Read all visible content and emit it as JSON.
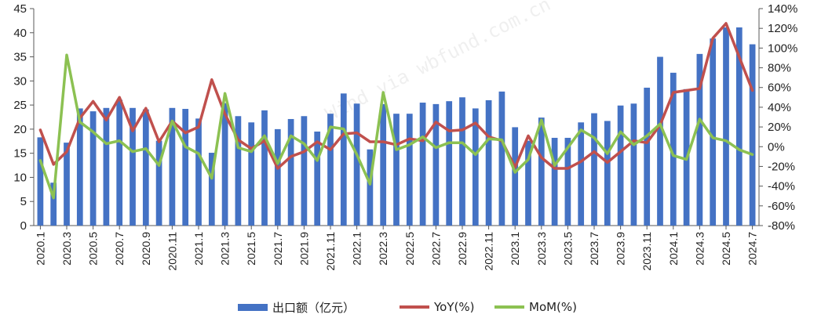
{
  "chart_data": {
    "type": "bar",
    "categories": [
      "2020.1",
      "2020.2",
      "2020.3",
      "2020.4",
      "2020.5",
      "2020.6",
      "2020.7",
      "2020.8",
      "2020.9",
      "2020.10",
      "2020.11",
      "2020.12",
      "2021.1",
      "2021.2",
      "2021.3",
      "2021.4",
      "2021.5",
      "2021.6",
      "2021.7",
      "2021.8",
      "2021.9",
      "2021.10",
      "2021.11",
      "2021.12",
      "2022.1",
      "2022.2",
      "2022.3",
      "2022.4",
      "2022.5",
      "2022.6",
      "2022.7",
      "2022.8",
      "2022.9",
      "2022.10",
      "2022.11",
      "2022.12",
      "2023.1",
      "2023.2",
      "2023.3",
      "2023.4",
      "2023.5",
      "2023.6",
      "2023.7",
      "2023.8",
      "2023.9",
      "2023.10",
      "2023.11",
      "2023.12",
      "2024.1",
      "2024.2",
      "2024.3",
      "2024.4",
      "2024.5",
      "2024.6",
      "2024.7"
    ],
    "x_tick_labels": [
      "2020.1",
      "2020.3",
      "2020.5",
      "2020.7",
      "2020.9",
      "2020.11",
      "2021.1",
      "2021.3",
      "2021.5",
      "2021.7",
      "2021.9",
      "2021.11",
      "2022.1",
      "2022.3",
      "2022.5",
      "2022.7",
      "2022.9",
      "2022.11",
      "2023.1",
      "2023.3",
      "2023.5",
      "2023.7",
      "2023.9",
      "2023.11",
      "2024.1",
      "2024.3",
      "2024.5",
      "2024.7"
    ],
    "series": [
      {
        "name": "出口额（亿元）",
        "type": "bar",
        "axis": "left",
        "color": "#4472C4",
        "values": [
          18.3,
          8.9,
          17.2,
          24.3,
          23.7,
          24.4,
          26.1,
          24.4,
          24.1,
          17.6,
          24.4,
          24.2,
          22.2,
          15.1,
          25.4,
          22.7,
          21.4,
          23.9,
          20.0,
          22.1,
          22.7,
          19.5,
          23.2,
          27.4,
          25.3,
          15.8,
          25.2,
          23.2,
          23.2,
          25.5,
          25.2,
          25.8,
          26.6,
          24.3,
          26.0,
          27.8,
          20.4,
          17.6,
          22.4,
          18.2,
          18.2,
          21.4,
          23.3,
          21.7,
          24.9,
          25.3,
          28.6,
          35.0,
          31.7,
          28.3,
          35.6,
          38.8,
          41.1,
          41.1,
          37.6
        ]
      },
      {
        "name": "YoY(%)",
        "type": "line",
        "axis": "right",
        "color": "#C0504D",
        "values": [
          17,
          -18,
          -5,
          29,
          46,
          27,
          50,
          16,
          39,
          5,
          26,
          14,
          20,
          68,
          33,
          7,
          -2,
          6,
          -22,
          -10,
          -5,
          5,
          -3,
          13,
          14,
          5,
          5,
          2,
          8,
          6,
          25,
          16,
          17,
          24,
          10,
          6,
          -21,
          11,
          -11,
          -22,
          -22,
          -15,
          -5,
          -16,
          -5,
          6,
          4,
          22,
          55,
          57,
          59,
          110,
          125,
          91,
          57
        ]
      },
      {
        "name": "MoM(%)",
        "type": "line",
        "axis": "right",
        "color": "#8CC152",
        "values": [
          -14,
          -52,
          93,
          25,
          15,
          3,
          6,
          -5,
          -2,
          -19,
          26,
          0,
          -7,
          -32,
          54,
          -1,
          -5,
          11,
          -17,
          11,
          3,
          -14,
          20,
          18,
          -8,
          -38,
          55,
          -3,
          2,
          10,
          -1,
          4,
          4,
          -8,
          8,
          7,
          -26,
          -13,
          27,
          -19,
          -1,
          17,
          9,
          -7,
          15,
          2,
          11,
          23,
          -9,
          -13,
          28,
          9,
          6,
          -3,
          -8
        ]
      }
    ],
    "ylim_left": [
      0,
      45
    ],
    "left_ticks": [
      "0",
      "5",
      "10",
      "15",
      "20",
      "25",
      "30",
      "35",
      "40",
      "45"
    ],
    "ylim_right": [
      -80,
      140
    ],
    "right_ticks": [
      "-80%",
      "-60%",
      "-40%",
      "-20%",
      "0%",
      "20%",
      "40%",
      "60%",
      "80%",
      "100%",
      "120%",
      "140%"
    ],
    "grid": false,
    "legend_position": "bottom",
    "watermark": "Wind via wbfund.com.cn"
  }
}
